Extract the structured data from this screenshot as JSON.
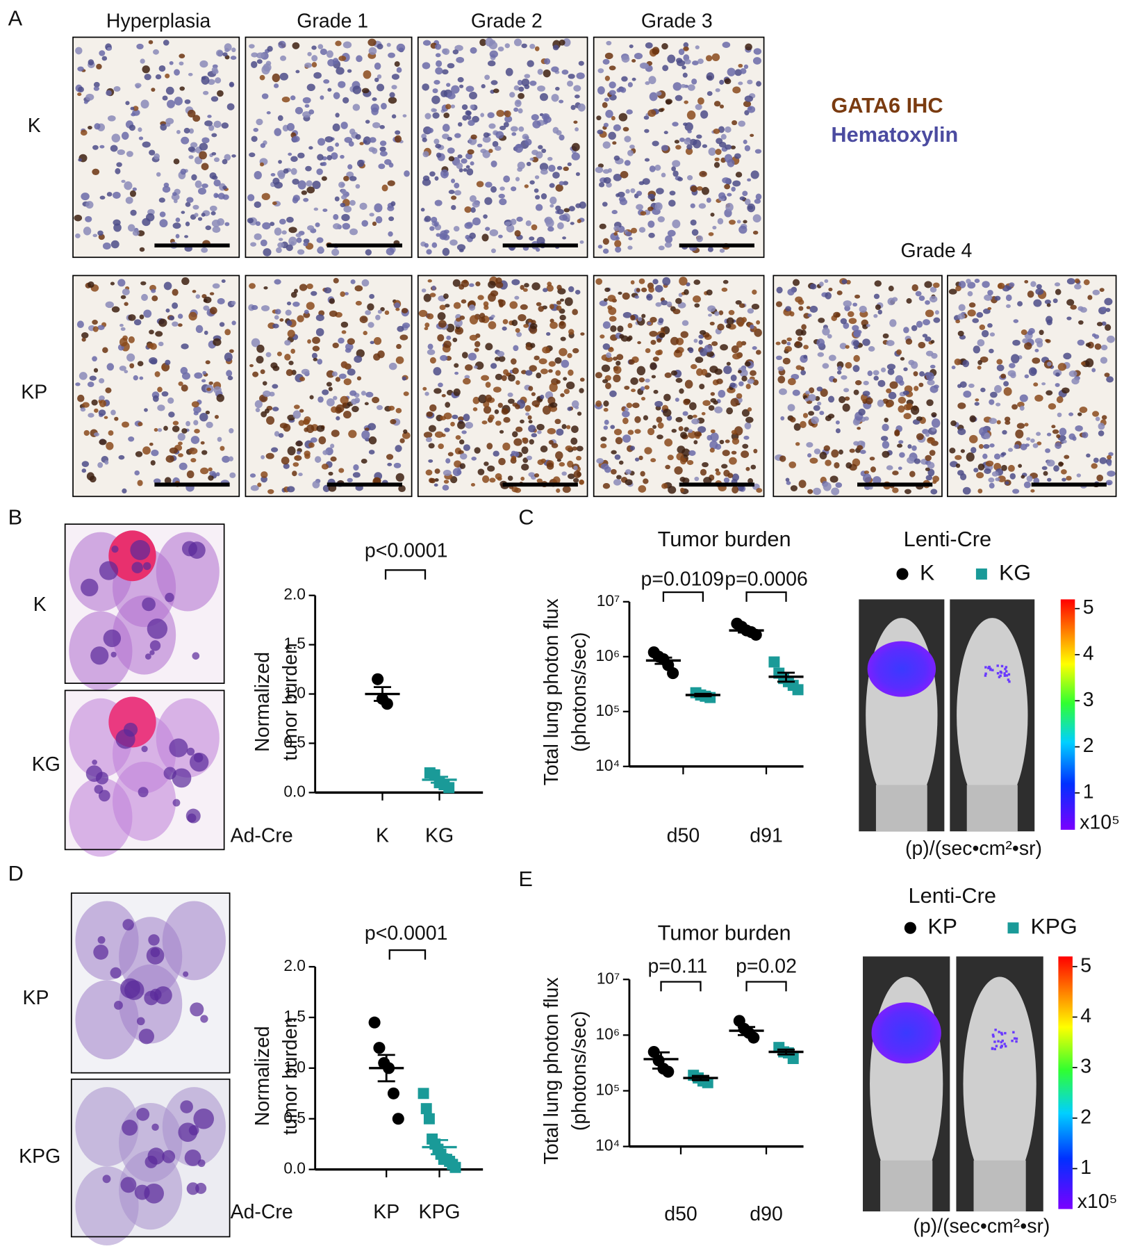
{
  "panel_labels": [
    "A",
    "B",
    "C",
    "D",
    "E"
  ],
  "panel_a": {
    "columns": [
      "Hyperplasia",
      "Grade 1",
      "Grade 2",
      "Grade 3"
    ],
    "extra_column": "Grade 4",
    "rows": [
      "K",
      "KP"
    ],
    "legend": [
      "GATA6 IHC",
      "Hematoxylin"
    ]
  },
  "panel_b": {
    "images": [
      "K",
      "KG"
    ]
  },
  "panel_d": {
    "images": [
      "KP",
      "KPG"
    ]
  },
  "colorbars": [
    {
      "ticks": [
        1,
        2,
        3,
        4,
        5
      ],
      "lim": [
        0.2,
        5.2
      ],
      "multiplier": "x10⁵",
      "unit": "(p)/(sec•cm²•sr)"
    },
    {
      "ticks": [
        1,
        2,
        3,
        4,
        5
      ],
      "lim": [
        0.2,
        5.2
      ],
      "multiplier": "x10⁵",
      "unit": "(p)/(sec•cm²•sr)"
    }
  ],
  "chart_data": [
    {
      "type": "dot",
      "ylabel": [
        "Normalized",
        "tumor burden"
      ],
      "xlabel": "Ad-Cre",
      "categories": [
        "K",
        "KG"
      ],
      "colors": [
        "#000000",
        "#1a9a98"
      ],
      "markers": [
        "circle",
        "square"
      ],
      "values": [
        [
          1.15,
          0.95,
          0.9
        ],
        [
          0.2,
          0.18,
          0.1,
          0.08,
          0.05
        ]
      ],
      "mean": [
        1.0,
        0.13
      ],
      "sem": [
        0.07,
        0.03
      ],
      "ylim": [
        0,
        2.0
      ],
      "yticks": [
        {
          "value": 0,
          "label": "0.0"
        },
        {
          "value": 0.5,
          "label": "0.5"
        },
        {
          "value": 1,
          "label": "1.0"
        },
        {
          "value": 1.5,
          "label": "1.5"
        },
        {
          "value": 2,
          "label": "2.0"
        }
      ],
      "annotations": [
        "p<0.0001"
      ]
    },
    {
      "type": "dot-series",
      "title": "Tumor burden",
      "ylabel": [
        "Total lung photon flux",
        "(photons/sec)"
      ],
      "categories": [
        "d50",
        "d91"
      ],
      "log": true,
      "legend_title": "Lenti-Cre",
      "series": [
        {
          "name": "K",
          "color": "#000000",
          "marker": "circle",
          "values": [
            [
              1200000,
              1000000,
              900000,
              700000,
              500000
            ],
            [
              4000000,
              3500000,
              3000000,
              2800000,
              2500000
            ]
          ],
          "mean": [
            850000,
            3000000
          ],
          "sem": [
            110000,
            250000
          ]
        },
        {
          "name": "KG",
          "color": "#1a9a98",
          "marker": "square",
          "values": [
            [
              220000,
              200000,
              190000,
              180000
            ],
            [
              800000,
              500000,
              400000,
              350000,
              300000,
              250000
            ]
          ],
          "mean": [
            200000,
            430000
          ],
          "sem": [
            10000,
            80000
          ]
        }
      ],
      "ylim": [
        10000,
        10000000
      ],
      "yticks": [
        {
          "value": 10000,
          "label": "10⁴"
        },
        {
          "value": 100000,
          "label": "10⁵"
        },
        {
          "value": 1000000,
          "label": "10⁶"
        },
        {
          "value": 10000000,
          "label": "10⁷"
        }
      ],
      "annotations": [
        "p=0.0109",
        "p=0.0006"
      ]
    },
    {
      "type": "dot",
      "ylabel": [
        "Normalized",
        "tumor burden"
      ],
      "xlabel": "Ad-Cre",
      "categories": [
        "KP",
        "KPG"
      ],
      "colors": [
        "#000000",
        "#1a9a98"
      ],
      "markers": [
        "circle",
        "square"
      ],
      "values": [
        [
          1.45,
          1.2,
          1.05,
          1.0,
          0.75,
          0.5
        ],
        [
          0.75,
          0.6,
          0.5,
          0.3,
          0.25,
          0.2,
          0.15,
          0.1,
          0.1,
          0.08,
          0.05,
          0.02
        ]
      ],
      "mean": [
        1.0,
        0.22
      ],
      "sem": [
        0.13,
        0.07
      ],
      "ylim": [
        0,
        2.0
      ],
      "yticks": [
        {
          "value": 0,
          "label": "0.0"
        },
        {
          "value": 0.5,
          "label": "0.5"
        },
        {
          "value": 1,
          "label": "1.0"
        },
        {
          "value": 1.5,
          "label": "1.5"
        },
        {
          "value": 2,
          "label": "2.0"
        }
      ],
      "annotations": [
        "p<0.0001"
      ]
    },
    {
      "type": "dot-series",
      "title": "Tumor burden",
      "ylabel": [
        "Total lung photon flux",
        "(photons/sec)"
      ],
      "categories": [
        "d50",
        "d90"
      ],
      "log": true,
      "legend_title": "Lenti-Cre",
      "series": [
        {
          "name": "KP",
          "color": "#000000",
          "marker": "circle",
          "values": [
            [
              500000,
              350000,
              250000,
              220000
            ],
            [
              1800000,
              1300000,
              1100000,
              900000
            ]
          ],
          "mean": [
            370000,
            1200000
          ],
          "sem": [
            120000,
            200000
          ]
        },
        {
          "name": "KPG",
          "color": "#1a9a98",
          "marker": "square",
          "values": [
            [
              190000,
              170000,
              150000,
              140000
            ],
            [
              600000,
              500000,
              480000,
              380000
            ]
          ],
          "mean": [
            170000,
            500000
          ],
          "sem": [
            15000,
            50000
          ]
        }
      ],
      "ylim": [
        10000,
        10000000
      ],
      "yticks": [
        {
          "value": 10000,
          "label": "10⁴"
        },
        {
          "value": 100000,
          "label": "10⁵"
        },
        {
          "value": 1000000,
          "label": "10⁶"
        },
        {
          "value": 10000000,
          "label": "10⁷"
        }
      ],
      "annotations": [
        "p=0.11",
        "p=0.02"
      ]
    }
  ]
}
